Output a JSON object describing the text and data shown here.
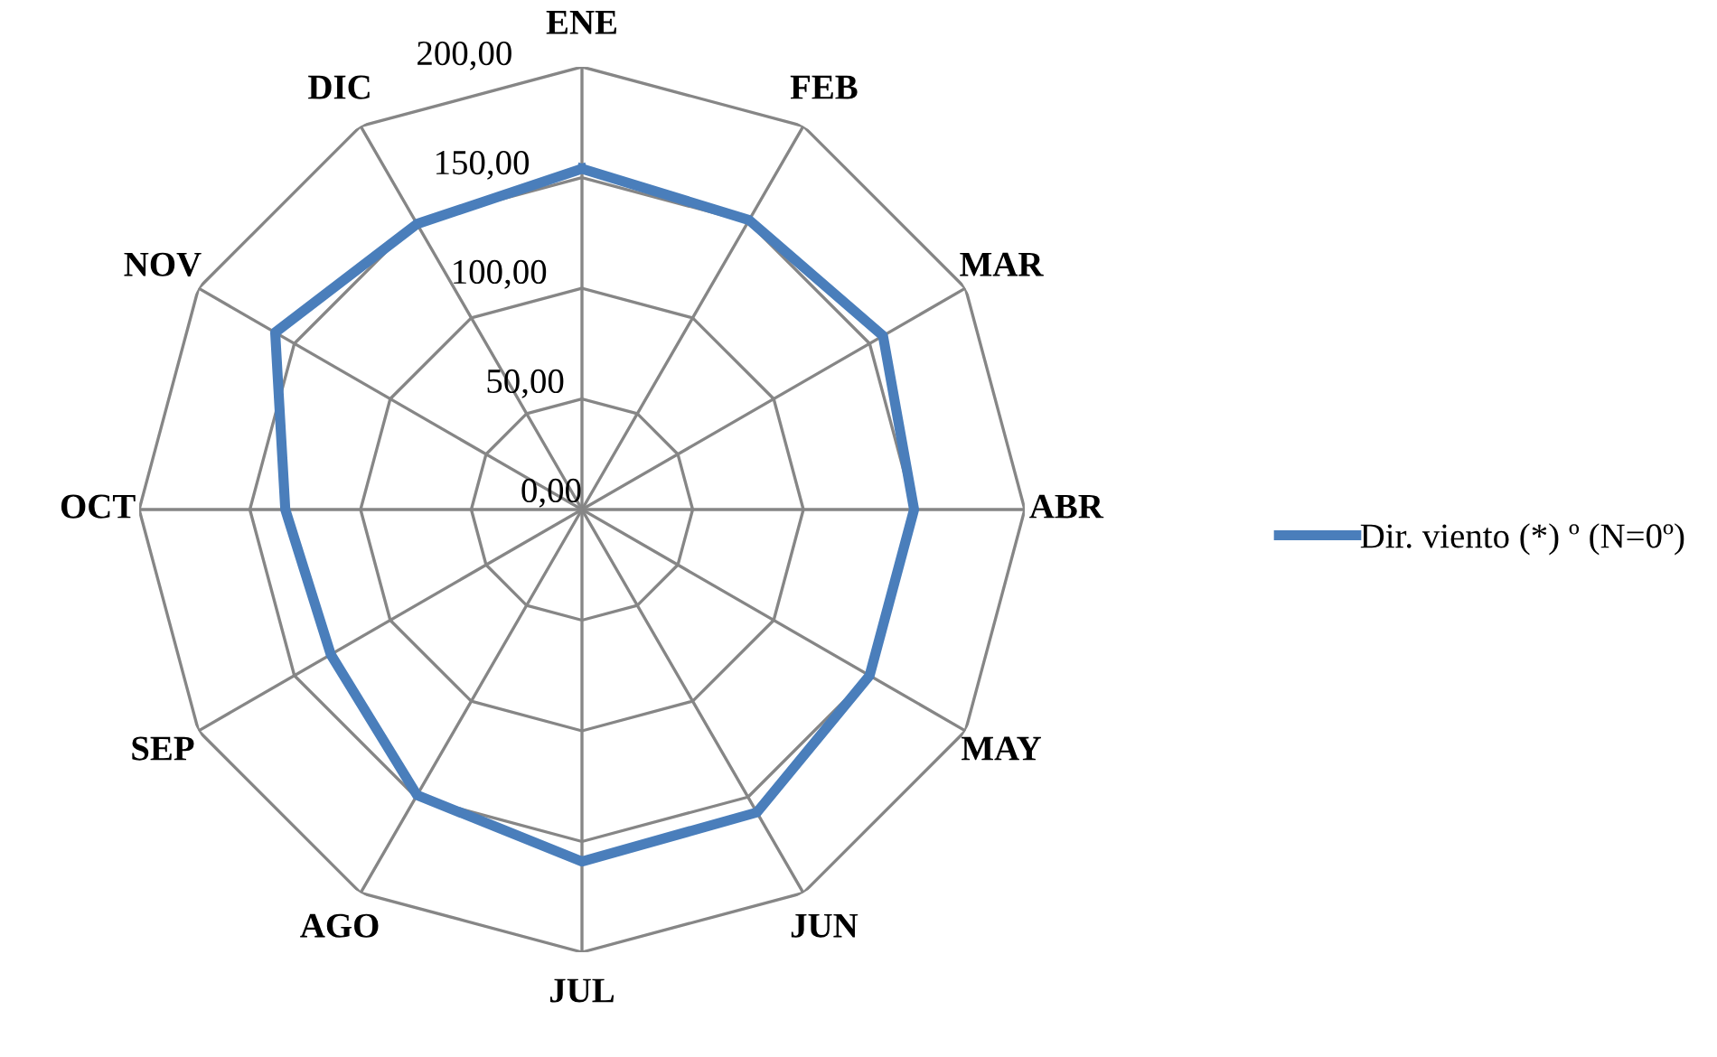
{
  "chart_data": {
    "type": "radar",
    "categories": [
      "ENE",
      "FEB",
      "MAR",
      "ABR",
      "MAY",
      "JUN",
      "JUL",
      "AGO",
      "SEP",
      "OCT",
      "NOV",
      "DIC"
    ],
    "series": [
      {
        "name": "Dir. viento (*) º (N=0º)",
        "color": "#4a7ebb",
        "values": [
          154,
          151,
          157,
          150,
          150,
          158,
          159,
          149,
          131,
          134,
          160,
          149
        ]
      }
    ],
    "ylim": [
      0,
      200
    ],
    "yticks": [
      {
        "value": 0,
        "label": "0,00"
      },
      {
        "value": 50,
        "label": "50,00"
      },
      {
        "value": 100,
        "label": "100,00"
      },
      {
        "value": 150,
        "label": "150,00"
      },
      {
        "value": 200,
        "label": "200,00"
      }
    ],
    "grid": true,
    "legend": "right",
    "marker": "none",
    "line_style": "solid"
  }
}
